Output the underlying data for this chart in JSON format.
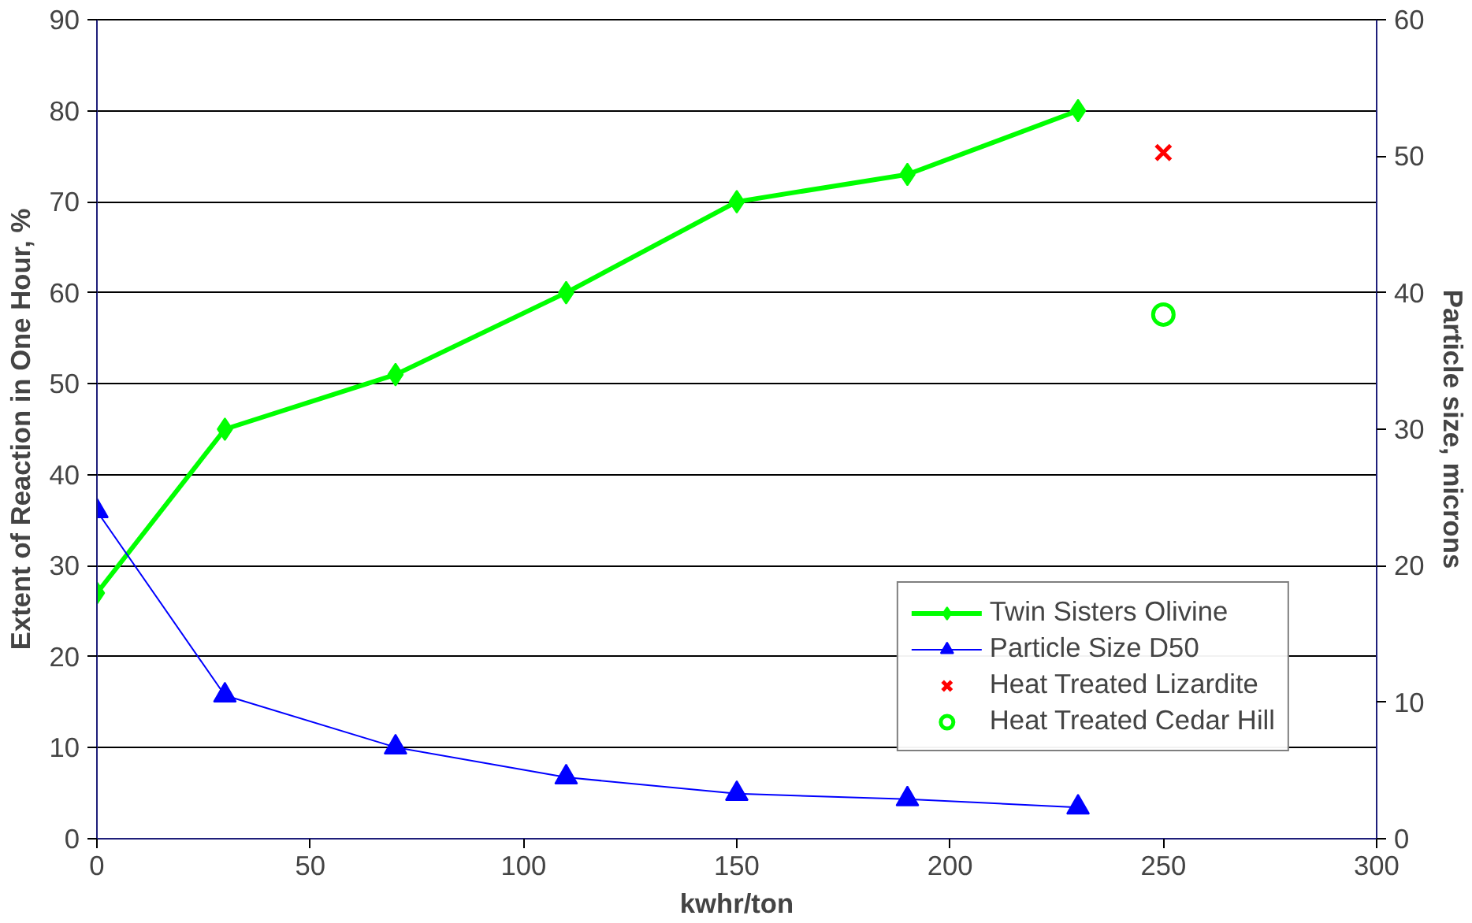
{
  "chart_data": {
    "type": "line",
    "xlabel": "kwhr/ton",
    "ylabel": "Extent of Reaction in One Hour, %",
    "y2label": "Particle size, microns",
    "x": [
      0,
      30,
      70,
      110,
      150,
      190,
      230
    ],
    "xlim": [
      0,
      300
    ],
    "xticks": [
      0,
      50,
      100,
      150,
      200,
      250,
      300
    ],
    "ylim": [
      0,
      90
    ],
    "yticks": [
      0,
      10,
      20,
      30,
      40,
      50,
      60,
      70,
      80,
      90
    ],
    "y2lim": [
      0,
      60
    ],
    "y2ticks": [
      0,
      10,
      20,
      30,
      40,
      50,
      60
    ],
    "grid": "y",
    "legend": "bottom right",
    "series": [
      {
        "name": "Twin Sisters Olivine",
        "color": "#00ff00",
        "marker": "diamond",
        "values": [
          27,
          45,
          51,
          60,
          70,
          73,
          80
        ]
      },
      {
        "name": "Particle Size D50",
        "color": "#0000ff",
        "marker": "triangle",
        "axis": "y2",
        "values": [
          24,
          10.5,
          6.7,
          4.5,
          3.3,
          2.9,
          2.3
        ]
      },
      {
        "name": "Heat Treated Lizardite",
        "type": "scatter",
        "color": "#ff0000",
        "marker": "cross",
        "x": [
          250
        ],
        "values": [
          75.4
        ]
      },
      {
        "name": "Heat Treated Cedar Hill",
        "type": "scatter",
        "color": "#00ff00",
        "marker": "circle",
        "x": [
          250
        ],
        "values": [
          57.6
        ]
      }
    ]
  }
}
